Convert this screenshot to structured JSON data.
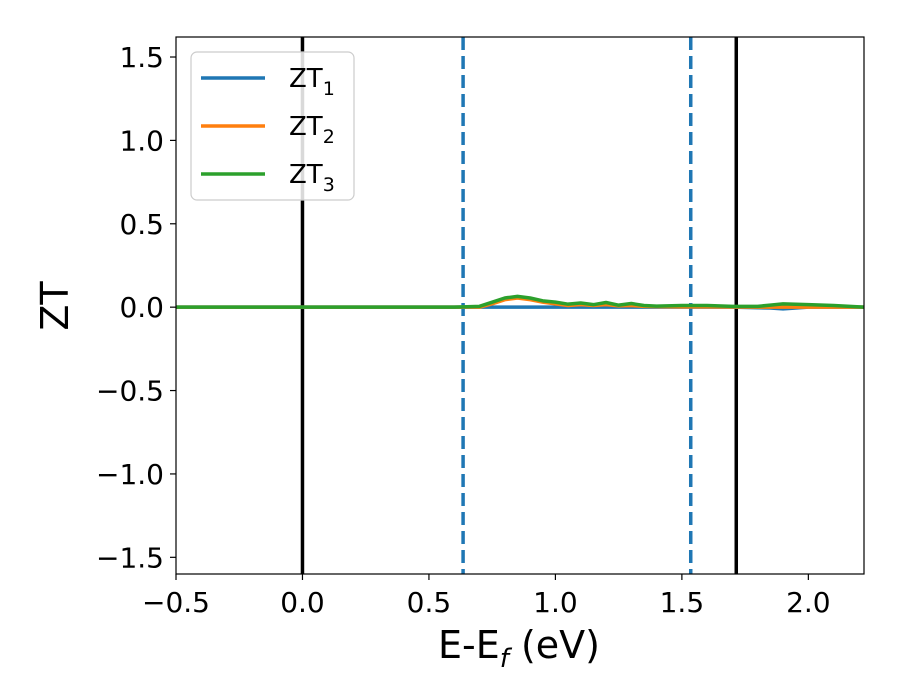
{
  "chart_data": {
    "type": "line",
    "title": "",
    "xlabel": "E-E",
    "xlabel_sub": "f",
    "xlabel_unit": " (eV)",
    "ylabel": "ZT",
    "xlim": [
      -0.5,
      2.22
    ],
    "ylim": [
      -1.6,
      1.62
    ],
    "xticks": [
      -0.5,
      0.0,
      0.5,
      1.0,
      1.5,
      2.0
    ],
    "xtick_labels": [
      "−0.5",
      "0.0",
      "0.5",
      "1.0",
      "1.5",
      "2.0"
    ],
    "yticks": [
      -1.5,
      -1.0,
      -0.5,
      0.0,
      0.5,
      1.0,
      1.5
    ],
    "ytick_labels": [
      "−1.5",
      "−1.0",
      "−0.5",
      "0.0",
      "0.5",
      "1.0",
      "1.5"
    ],
    "grid": false,
    "legend_position": "top-left",
    "vlines": [
      {
        "x": 0.0,
        "color": "#000000",
        "style": "solid"
      },
      {
        "x": 0.635,
        "color": "#1f77b4",
        "style": "dashed"
      },
      {
        "x": 1.535,
        "color": "#1f77b4",
        "style": "dashed"
      },
      {
        "x": 1.715,
        "color": "#000000",
        "style": "solid"
      }
    ],
    "series": [
      {
        "name": "ZT",
        "sub": "1",
        "color": "#1f77b4",
        "x": [
          -0.5,
          0.0,
          0.5,
          0.7,
          1.0,
          1.5,
          1.7,
          1.85,
          1.9,
          1.95,
          2.0,
          2.22
        ],
        "y": [
          0.0,
          0.0,
          0.0,
          0.0,
          0.0,
          0.0,
          0.0,
          -0.005,
          -0.01,
          -0.005,
          0.0,
          0.0
        ]
      },
      {
        "name": "ZT",
        "sub": "2",
        "color": "#ff7f0e",
        "x": [
          -0.5,
          0.6,
          0.7,
          0.75,
          0.8,
          0.85,
          0.9,
          0.95,
          1.0,
          1.05,
          1.1,
          1.15,
          1.2,
          1.25,
          1.3,
          1.35,
          1.4,
          1.5,
          1.6,
          1.7,
          1.8,
          1.9,
          2.0,
          2.1,
          2.22
        ],
        "y": [
          0.0,
          0.0,
          0.0,
          0.02,
          0.045,
          0.055,
          0.045,
          0.03,
          0.02,
          0.01,
          0.015,
          0.01,
          0.015,
          0.008,
          0.01,
          0.005,
          0.003,
          0.002,
          0.002,
          0.001,
          0.0,
          0.0,
          0.0,
          0.0,
          0.0
        ]
      },
      {
        "name": "ZT",
        "sub": "3",
        "color": "#2ca02c",
        "x": [
          -0.5,
          0.6,
          0.7,
          0.75,
          0.8,
          0.85,
          0.9,
          0.95,
          1.0,
          1.05,
          1.1,
          1.15,
          1.2,
          1.25,
          1.3,
          1.35,
          1.4,
          1.5,
          1.6,
          1.7,
          1.8,
          1.85,
          1.9,
          2.0,
          2.1,
          2.22
        ],
        "y": [
          0.0,
          0.0,
          0.005,
          0.03,
          0.055,
          0.065,
          0.055,
          0.038,
          0.03,
          0.018,
          0.025,
          0.015,
          0.028,
          0.012,
          0.022,
          0.01,
          0.006,
          0.01,
          0.01,
          0.005,
          0.005,
          0.012,
          0.02,
          0.015,
          0.01,
          0.0
        ]
      }
    ]
  }
}
